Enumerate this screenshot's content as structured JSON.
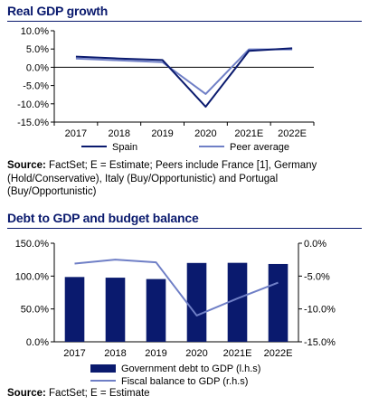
{
  "charts": [
    {
      "heading": "Real GDP growth",
      "source_label": "Source:",
      "source_text": "FactSet; E = Estimate; Peers include France [1], Germany (Hold/Conservative), Italy (Buy/Opportunistic) and Portugal (Buy/Opportunistic)"
    },
    {
      "heading": "Debt to GDP and budget balance",
      "source_label": "Source:",
      "source_text": "FactSet; E = Estimate"
    }
  ],
  "chart_data": [
    {
      "type": "line",
      "title": "Real GDP growth",
      "categories": [
        "2017",
        "2018",
        "2019",
        "2020",
        "2021E",
        "2022E"
      ],
      "yticks": [
        "10.0%",
        "5.0%",
        "0.0%",
        "-5.0%",
        "-10.0%",
        "-15.0%"
      ],
      "ylim": [
        -15,
        10
      ],
      "series": [
        {
          "name": "Spain",
          "values": [
            2.9,
            2.4,
            2.0,
            -10.8,
            4.5,
            5.2
          ],
          "color": "#0a1a6e"
        },
        {
          "name": "Peer average",
          "values": [
            2.4,
            1.9,
            1.4,
            -7.3,
            4.9,
            4.9
          ],
          "color": "#6f7fc6"
        }
      ],
      "legend_position": "bottom",
      "grid": false
    },
    {
      "type": "bar",
      "title": "Debt to GDP and budget balance",
      "categories": [
        "2017",
        "2018",
        "2019",
        "2020",
        "2021E",
        "2022E"
      ],
      "yticks_left": [
        "150.0%",
        "100.0%",
        "50.0%",
        "0.0%"
      ],
      "yticks_right": [
        "0.0%",
        "-5.0%",
        "-10.0%",
        "-15.0%"
      ],
      "ylim_left": [
        0,
        150
      ],
      "ylim_right": [
        -15,
        0
      ],
      "series": [
        {
          "name": "Government debt to GDP (l.h.s)",
          "type": "bar",
          "axis": "left",
          "values": [
            98.6,
            97.6,
            95.5,
            120.0,
            120.2,
            118.4
          ],
          "color": "#0a1a6e"
        },
        {
          "name": "Fiscal balance to GDP (r.h.s)",
          "type": "line",
          "axis": "right",
          "values": [
            -3.1,
            -2.5,
            -2.9,
            -11.0,
            -8.4,
            -6.0
          ],
          "color": "#6f7fc6"
        }
      ],
      "legend_position": "bottom",
      "grid": false
    }
  ]
}
